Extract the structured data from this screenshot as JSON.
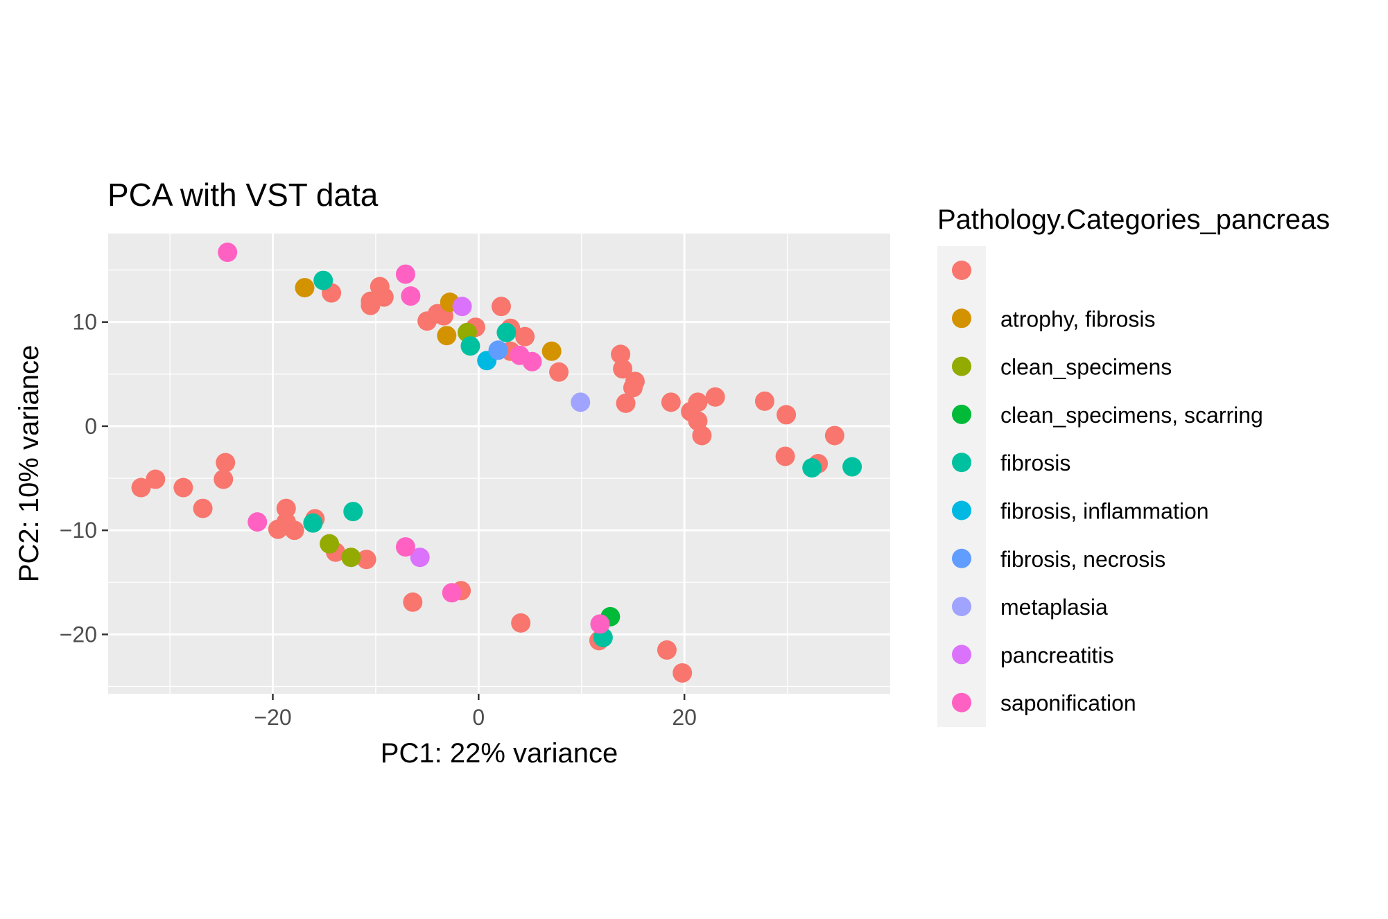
{
  "chart_data": {
    "type": "scatter",
    "title": "PCA with VST data",
    "xlabel": "PC1: 22% variance",
    "ylabel": "PC2: 10% variance",
    "xlim": [
      -36,
      40
    ],
    "ylim": [
      -25.7,
      18.5
    ],
    "xticks": [
      -20,
      0,
      20
    ],
    "yticks": [
      -20,
      -10,
      0,
      10
    ],
    "xtick_labels": [
      "−20",
      "0",
      "20"
    ],
    "ytick_labels": [
      "−20",
      "−10",
      "0",
      "10"
    ],
    "grid": true,
    "legend_position": "right",
    "legend": {
      "title": "Pathology.Categories_pancreas",
      "entries": [
        {
          "label": "",
          "color": "#F8766D"
        },
        {
          "label": "atrophy, fibrosis",
          "color": "#D39200"
        },
        {
          "label": "clean_specimens",
          "color": "#93AA00"
        },
        {
          "label": "clean_specimens, scarring",
          "color": "#00BA38"
        },
        {
          "label": "fibrosis",
          "color": "#00C19F"
        },
        {
          "label": "fibrosis, inflammation",
          "color": "#00B9E3"
        },
        {
          "label": "fibrosis, necrosis",
          "color": "#619CFF"
        },
        {
          "label": "metaplasia",
          "color": "#A0A4FF"
        },
        {
          "label": "pancreatitis",
          "color": "#DB72FB"
        },
        {
          "label": "saponification",
          "color": "#FF61C3"
        }
      ]
    },
    "series": [
      {
        "name": "",
        "color": "#F8766D",
        "points": [
          [
            -14.3,
            12.8
          ],
          [
            -10.5,
            12.0
          ],
          [
            -10.5,
            11.6
          ],
          [
            -9.6,
            13.4
          ],
          [
            -9.2,
            12.4
          ],
          [
            -5.0,
            10.1
          ],
          [
            -4.0,
            10.8
          ],
          [
            -3.4,
            10.6
          ],
          [
            -0.3,
            9.5
          ],
          [
            2.2,
            11.5
          ],
          [
            3.1,
            9.4
          ],
          [
            4.5,
            8.6
          ],
          [
            3.1,
            7.2
          ],
          [
            7.8,
            5.2
          ],
          [
            13.8,
            6.9
          ],
          [
            14.0,
            5.5
          ],
          [
            15.2,
            4.3
          ],
          [
            15.0,
            3.7
          ],
          [
            14.3,
            2.2
          ],
          [
            18.7,
            2.3
          ],
          [
            21.3,
            2.3
          ],
          [
            20.6,
            1.4
          ],
          [
            21.3,
            0.5
          ],
          [
            21.7,
            -0.9
          ],
          [
            23.0,
            2.8
          ],
          [
            27.8,
            2.4
          ],
          [
            29.9,
            1.1
          ],
          [
            29.8,
            -2.9
          ],
          [
            33.0,
            -3.6
          ],
          [
            34.6,
            -0.9
          ],
          [
            -24.6,
            -3.5
          ],
          [
            -24.8,
            -5.1
          ],
          [
            -32.8,
            -5.9
          ],
          [
            -31.4,
            -5.1
          ],
          [
            -28.7,
            -5.9
          ],
          [
            -26.8,
            -7.9
          ],
          [
            -19.5,
            -9.9
          ],
          [
            -18.7,
            -7.9
          ],
          [
            -18.7,
            -9.2
          ],
          [
            -17.9,
            -10.0
          ],
          [
            -15.9,
            -8.9
          ],
          [
            -13.9,
            -12.1
          ],
          [
            -10.9,
            -12.8
          ],
          [
            -6.4,
            -16.9
          ],
          [
            -1.7,
            -15.8
          ],
          [
            4.1,
            -18.9
          ],
          [
            11.7,
            -20.6
          ],
          [
            18.3,
            -21.5
          ],
          [
            19.8,
            -23.7
          ]
        ]
      },
      {
        "name": "atrophy, fibrosis",
        "color": "#D39200",
        "points": [
          [
            -16.9,
            13.3
          ],
          [
            -2.8,
            11.9
          ],
          [
            -3.1,
            8.7
          ],
          [
            7.1,
            7.2
          ]
        ]
      },
      {
        "name": "clean_specimens",
        "color": "#93AA00",
        "points": [
          [
            -1.1,
            9.0
          ],
          [
            -14.5,
            -11.3
          ],
          [
            -12.4,
            -12.6
          ]
        ]
      },
      {
        "name": "clean_specimens, scarring",
        "color": "#00BA38",
        "points": [
          [
            12.8,
            -18.3
          ]
        ]
      },
      {
        "name": "fibrosis",
        "color": "#00C19F",
        "points": [
          [
            -15.1,
            14.0
          ],
          [
            -0.8,
            7.7
          ],
          [
            2.7,
            9.0
          ],
          [
            32.4,
            -4.0
          ],
          [
            36.3,
            -3.9
          ],
          [
            -16.1,
            -9.3
          ],
          [
            -12.2,
            -8.2
          ],
          [
            12.1,
            -20.3
          ]
        ]
      },
      {
        "name": "fibrosis, inflammation",
        "color": "#00B9E3",
        "points": [
          [
            0.8,
            6.3
          ]
        ]
      },
      {
        "name": "fibrosis, necrosis",
        "color": "#619CFF",
        "points": [
          [
            1.9,
            7.3
          ]
        ]
      },
      {
        "name": "metaplasia",
        "color": "#A0A4FF",
        "points": [
          [
            9.9,
            2.3
          ]
        ]
      },
      {
        "name": "pancreatitis",
        "color": "#DB72FB",
        "points": [
          [
            -1.6,
            11.5
          ],
          [
            -5.7,
            -12.6
          ]
        ]
      },
      {
        "name": "saponification",
        "color": "#FF61C3",
        "points": [
          [
            -24.4,
            16.7
          ],
          [
            -7.1,
            14.6
          ],
          [
            -6.6,
            12.5
          ],
          [
            4.0,
            6.8
          ],
          [
            5.2,
            6.2
          ],
          [
            -21.5,
            -9.2
          ],
          [
            -7.1,
            -11.6
          ],
          [
            -2.6,
            -16.0
          ],
          [
            11.8,
            -19.0
          ]
        ]
      }
    ]
  }
}
